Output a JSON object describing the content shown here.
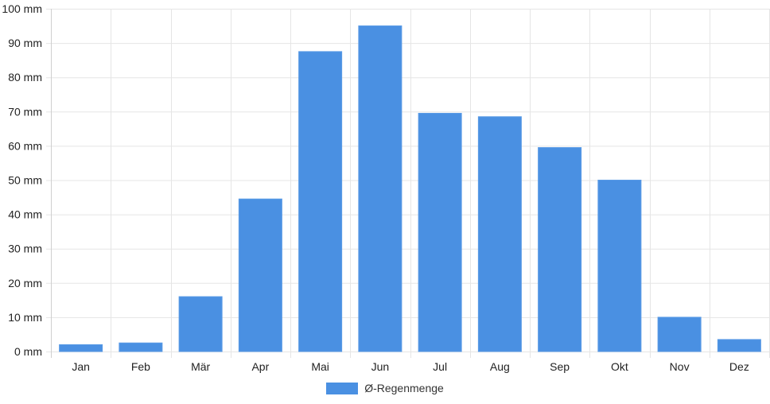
{
  "chart_data": {
    "type": "bar",
    "categories": [
      "Jan",
      "Feb",
      "Mär",
      "Apr",
      "Mai",
      "Jun",
      "Jul",
      "Aug",
      "Sep",
      "Okt",
      "Nov",
      "Dez"
    ],
    "series": [
      {
        "name": "Ø-Regenmenge",
        "values": [
          2,
          2.5,
          16,
          44.5,
          87.5,
          95,
          69.5,
          68.5,
          59.5,
          50,
          10,
          3.5
        ],
        "color": "#4a90e2"
      }
    ],
    "title": "",
    "xlabel": "",
    "ylabel": "",
    "ylim": [
      0,
      100
    ],
    "y_ticks": [
      0,
      10,
      20,
      30,
      40,
      50,
      60,
      70,
      80,
      90,
      100
    ],
    "y_tick_suffix": " mm",
    "grid": true,
    "legend_position": "bottom"
  }
}
